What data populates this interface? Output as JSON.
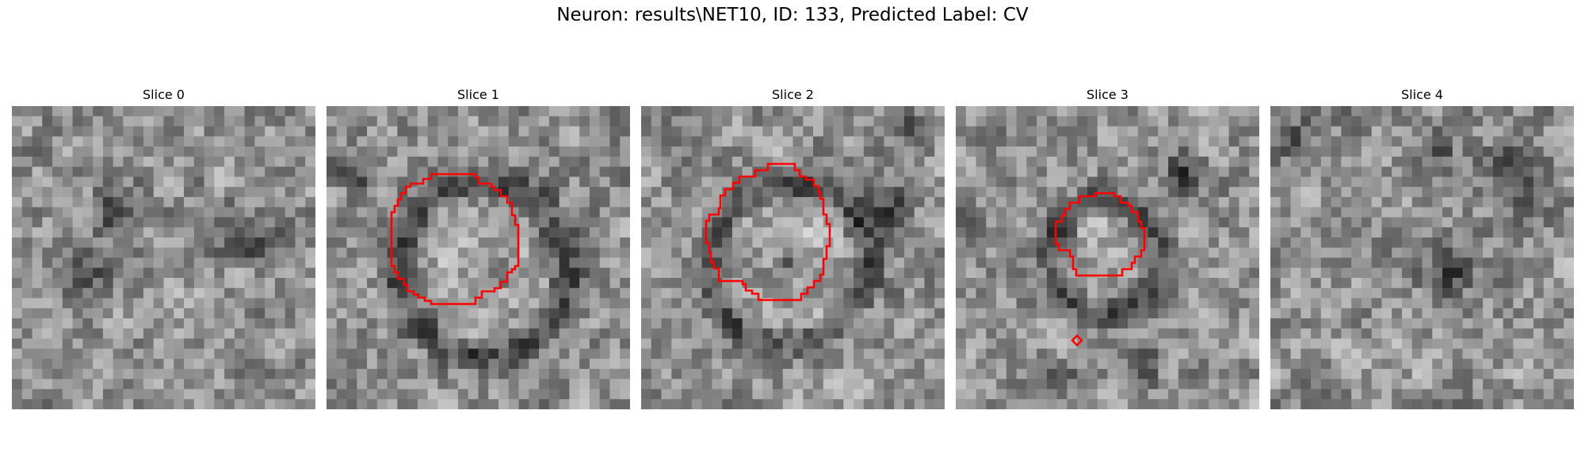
{
  "figure": {
    "title": "Neuron: results\\NET10, ID: 133, Predicted Label: CV",
    "contour_color": "#ff0000"
  },
  "panels": [
    {
      "title": "Slice 0",
      "has_contour": false,
      "texture_seed": 11
    },
    {
      "title": "Slice 1",
      "has_contour": true,
      "texture_seed": 23
    },
    {
      "title": "Slice 2",
      "has_contour": true,
      "texture_seed": 37
    },
    {
      "title": "Slice 3",
      "has_contour": true,
      "texture_seed": 51
    },
    {
      "title": "Slice 4",
      "has_contour": false,
      "texture_seed": 67
    }
  ]
}
